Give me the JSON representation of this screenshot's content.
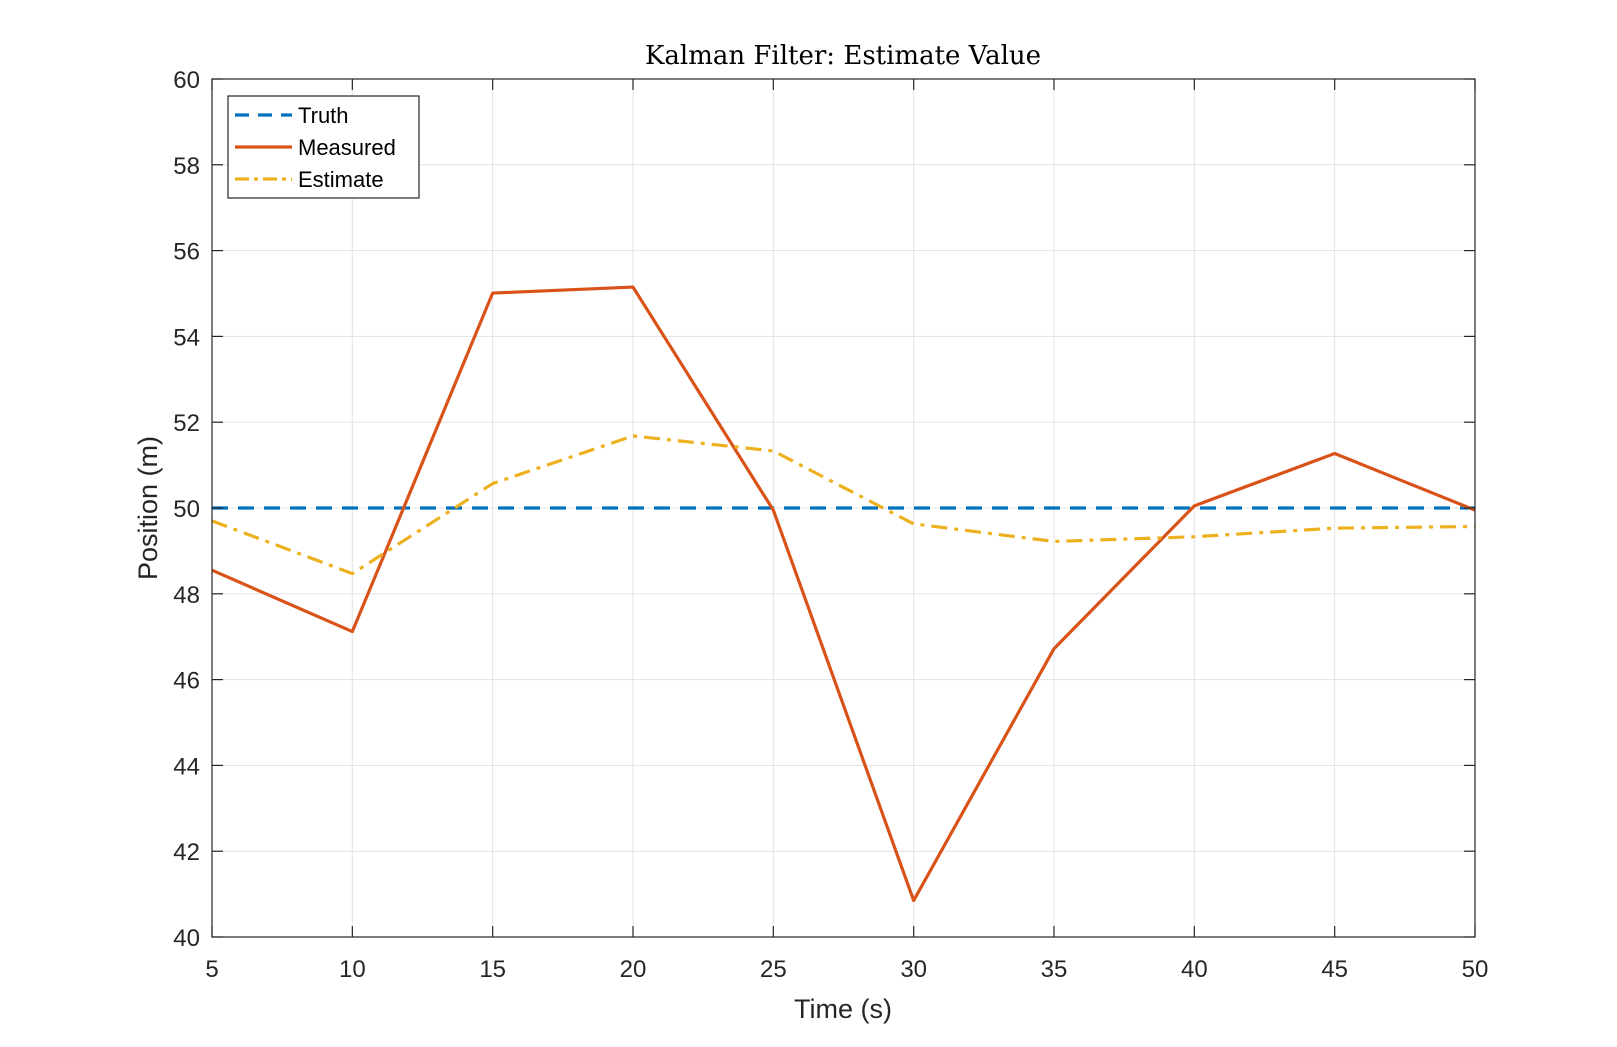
{
  "chart_data": {
    "type": "line",
    "title": "Kalman Filter: Estimate Value",
    "xlabel": "Time (s)",
    "ylabel": "Position (m)",
    "xlim": [
      5,
      50
    ],
    "ylim": [
      40,
      60
    ],
    "x_ticks": [
      "5",
      "10",
      "15",
      "20",
      "25",
      "30",
      "35",
      "40",
      "45",
      "50"
    ],
    "y_ticks": [
      "40",
      "42",
      "44",
      "46",
      "48",
      "50",
      "52",
      "54",
      "56",
      "58",
      "60"
    ],
    "grid": true,
    "legend_position": "top-left",
    "x": [
      5,
      10,
      15,
      20,
      25,
      30,
      35,
      40,
      45,
      50
    ],
    "series": [
      {
        "name": "Truth",
        "color": "#0072BD",
        "style": "dashed",
        "values": [
          50,
          50,
          50,
          50,
          50,
          50,
          50,
          50,
          50,
          50
        ]
      },
      {
        "name": "Measured",
        "color": "#D95319",
        "style": "solid",
        "values": [
          48.55,
          47.12,
          55.01,
          55.15,
          49.95,
          40.85,
          46.72,
          50.05,
          51.27,
          49.95
        ]
      },
      {
        "name": "Estimate",
        "color": "#EDB120",
        "style": "dashdot",
        "values": [
          49.7,
          48.47,
          50.57,
          51.68,
          51.33,
          49.63,
          49.22,
          49.33,
          49.53,
          49.57
        ]
      }
    ]
  }
}
